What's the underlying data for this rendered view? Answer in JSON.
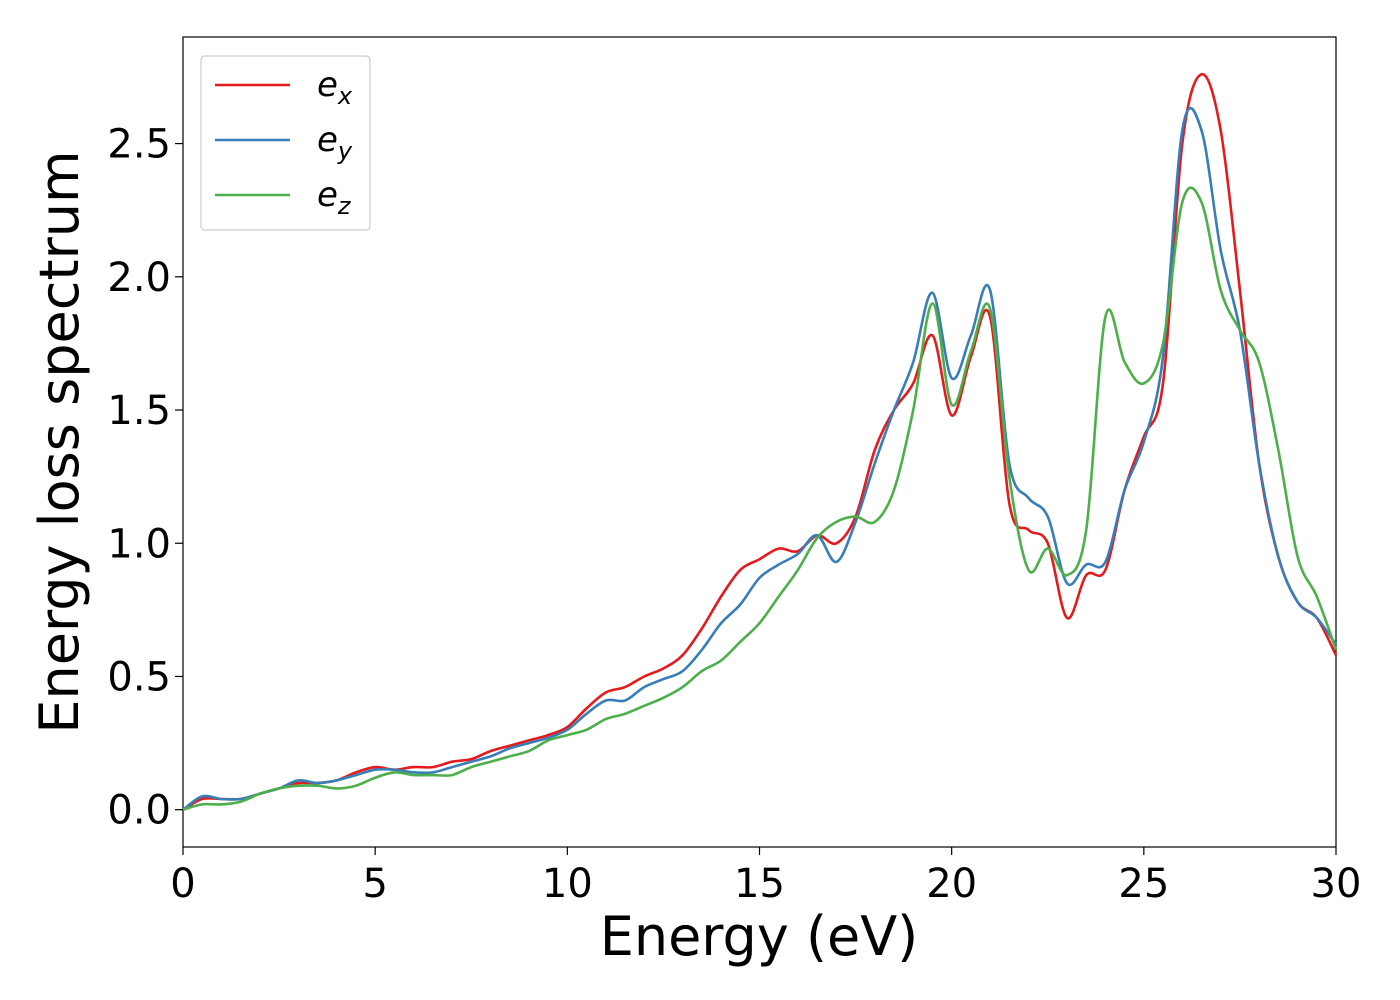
{
  "chart_data": {
    "type": "line",
    "xlabel": "Energy (eV)",
    "ylabel": "Energy loss spectrum",
    "xlim": [
      0,
      30
    ],
    "ylim": [
      -0.14,
      2.9
    ],
    "xticks": [
      "0",
      "5",
      "10",
      "15",
      "20",
      "25",
      "30"
    ],
    "xtick_values": [
      0,
      5,
      10,
      15,
      20,
      25,
      30
    ],
    "yticks": [
      "0.0",
      "0.5",
      "1.0",
      "1.5",
      "2.0",
      "2.5"
    ],
    "ytick_values": [
      0,
      0.5,
      1.0,
      1.5,
      2.0,
      2.5
    ],
    "grid": false,
    "legend_position": "upper-left",
    "x": [
      0,
      0.5,
      1,
      1.5,
      2,
      2.5,
      3,
      3.5,
      4,
      4.5,
      5,
      5.5,
      6,
      6.5,
      7,
      7.5,
      8,
      8.5,
      9,
      9.5,
      10,
      10.5,
      11,
      11.5,
      12,
      12.5,
      13,
      13.5,
      14,
      14.5,
      15,
      15.5,
      16,
      16.5,
      17,
      17.5,
      18,
      18.5,
      19,
      19.5,
      20,
      20.5,
      21,
      21.5,
      22,
      22.5,
      23,
      23.5,
      24,
      24.5,
      25,
      25.5,
      26,
      26.5,
      27,
      27.5,
      28,
      28.5,
      29,
      29.5,
      30
    ],
    "series": [
      {
        "label_main": "e",
        "label_sub": "x",
        "color": "#e41a1c",
        "values": [
          0.0,
          0.04,
          0.04,
          0.04,
          0.06,
          0.08,
          0.1,
          0.1,
          0.11,
          0.14,
          0.16,
          0.15,
          0.16,
          0.16,
          0.18,
          0.19,
          0.22,
          0.24,
          0.26,
          0.28,
          0.31,
          0.38,
          0.44,
          0.46,
          0.5,
          0.53,
          0.58,
          0.68,
          0.8,
          0.9,
          0.94,
          0.98,
          0.97,
          1.03,
          1.0,
          1.1,
          1.35,
          1.5,
          1.6,
          1.78,
          1.48,
          1.7,
          1.85,
          1.15,
          1.05,
          1.0,
          0.72,
          0.88,
          0.9,
          1.2,
          1.4,
          1.6,
          2.5,
          2.76,
          2.55,
          1.95,
          1.3,
          0.95,
          0.78,
          0.72,
          0.58
        ]
      },
      {
        "label_main": "e",
        "label_sub": "y",
        "color": "#377eb8",
        "values": [
          0.0,
          0.05,
          0.04,
          0.04,
          0.06,
          0.08,
          0.11,
          0.1,
          0.11,
          0.13,
          0.15,
          0.15,
          0.14,
          0.14,
          0.16,
          0.18,
          0.2,
          0.23,
          0.25,
          0.27,
          0.3,
          0.36,
          0.41,
          0.41,
          0.46,
          0.49,
          0.52,
          0.6,
          0.7,
          0.77,
          0.87,
          0.92,
          0.96,
          1.03,
          0.93,
          1.08,
          1.3,
          1.5,
          1.68,
          1.94,
          1.62,
          1.78,
          1.95,
          1.3,
          1.17,
          1.1,
          0.85,
          0.92,
          0.93,
          1.2,
          1.38,
          1.7,
          2.55,
          2.55,
          2.1,
          1.8,
          1.3,
          0.95,
          0.78,
          0.72,
          0.62
        ]
      },
      {
        "label_main": "e",
        "label_sub": "z",
        "color": "#4daf4a",
        "values": [
          0.0,
          0.02,
          0.02,
          0.03,
          0.06,
          0.08,
          0.09,
          0.09,
          0.08,
          0.09,
          0.12,
          0.14,
          0.13,
          0.13,
          0.13,
          0.16,
          0.18,
          0.2,
          0.22,
          0.26,
          0.28,
          0.3,
          0.34,
          0.36,
          0.39,
          0.42,
          0.46,
          0.52,
          0.56,
          0.63,
          0.7,
          0.8,
          0.9,
          1.02,
          1.08,
          1.1,
          1.08,
          1.2,
          1.5,
          1.9,
          1.52,
          1.72,
          1.88,
          1.25,
          0.9,
          0.98,
          0.88,
          1.05,
          1.85,
          1.68,
          1.6,
          1.75,
          2.28,
          2.28,
          1.95,
          1.8,
          1.68,
          1.35,
          0.95,
          0.8,
          0.6
        ]
      }
    ]
  }
}
